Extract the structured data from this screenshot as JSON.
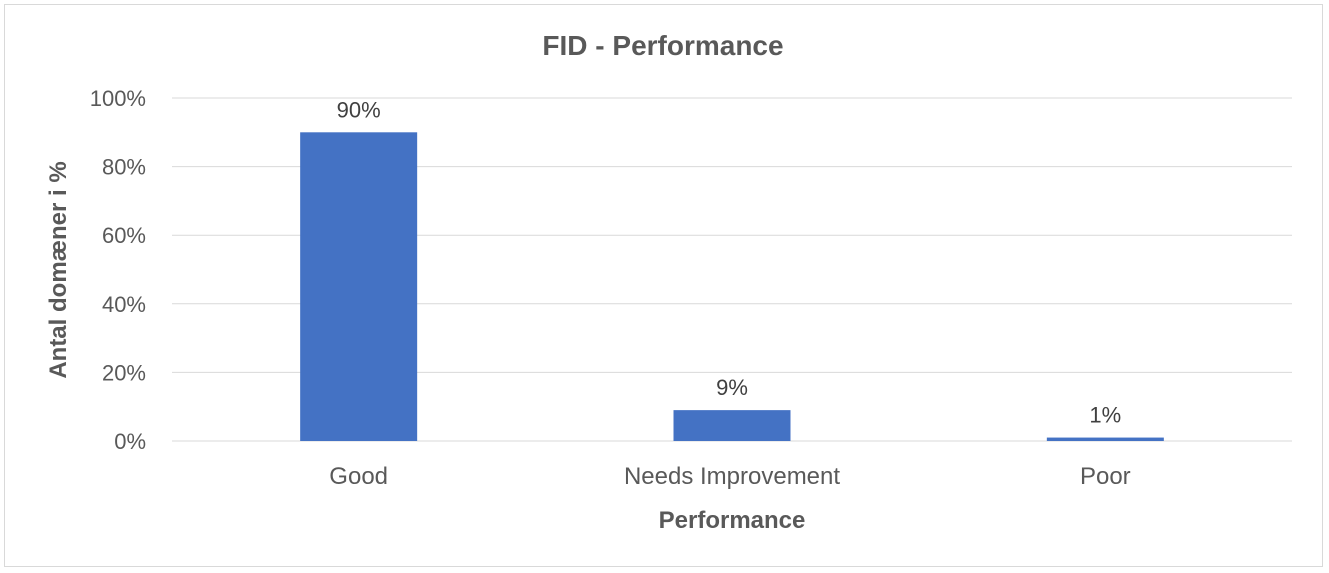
{
  "chart_data": {
    "type": "bar",
    "title": "FID - Performance",
    "xlabel": "Performance",
    "ylabel": "Antal domæner i %",
    "categories": [
      "Good",
      "Needs Improvement",
      "Poor"
    ],
    "values": [
      90,
      9,
      1
    ],
    "data_labels": [
      "90%",
      "9%",
      "1%"
    ],
    "ylim": [
      0,
      100
    ],
    "yticks": [
      0,
      20,
      40,
      60,
      80,
      100
    ],
    "ytick_labels": [
      "0%",
      "20%",
      "40%",
      "60%",
      "80%",
      "100%"
    ],
    "grid": true,
    "bar_color": "#4472c4"
  }
}
